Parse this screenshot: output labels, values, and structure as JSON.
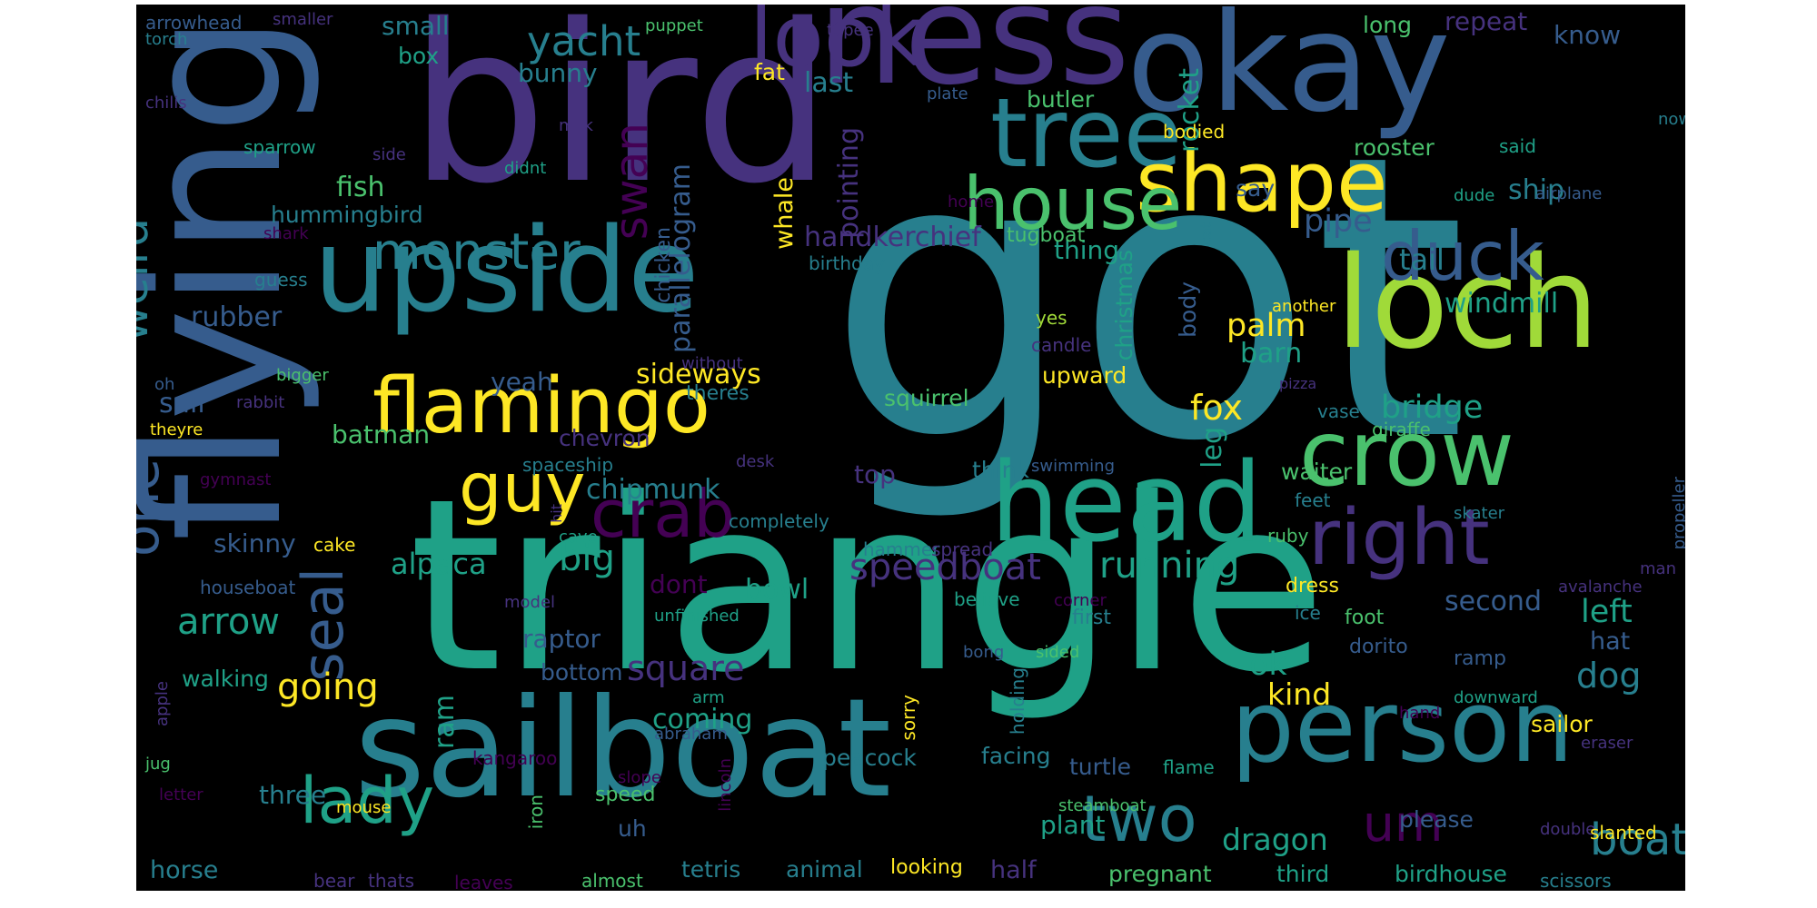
{
  "palette": {
    "c1": "#440154",
    "c2": "#46327e",
    "c3": "#365c8d",
    "c4": "#277f8e",
    "c5": "#1fa187",
    "c6": "#4ac16d",
    "c7": "#a0da39",
    "c8": "#fde725"
  },
  "words": [
    {
      "text": "got",
      "color": "c4"
    },
    {
      "text": "triangle",
      "color": "c5"
    },
    {
      "text": "bird",
      "color": "c2"
    },
    {
      "text": "flying",
      "color": "c3"
    },
    {
      "text": "sailboat",
      "color": "c4"
    },
    {
      "text": "ness",
      "color": "c2"
    },
    {
      "text": "okay",
      "color": "c3"
    },
    {
      "text": "loch",
      "color": "c7"
    },
    {
      "text": "upside",
      "color": "c4"
    },
    {
      "text": "head",
      "color": "c5"
    },
    {
      "text": "person",
      "color": "c4"
    },
    {
      "text": "crow",
      "color": "c6"
    },
    {
      "text": "tree",
      "color": "c4"
    },
    {
      "text": "look",
      "color": "c2"
    },
    {
      "text": "shape",
      "color": "c8"
    },
    {
      "text": "flamingo",
      "color": "c8"
    },
    {
      "text": "house",
      "color": "c6"
    },
    {
      "text": "right",
      "color": "c2"
    },
    {
      "text": "duck",
      "color": "c3"
    },
    {
      "text": "crab",
      "color": "c1"
    },
    {
      "text": "guy",
      "color": "c8"
    },
    {
      "text": "monster",
      "color": "c4"
    },
    {
      "text": "seal",
      "color": "c3"
    },
    {
      "text": "lady",
      "color": "c5"
    },
    {
      "text": "two",
      "color": "c4"
    },
    {
      "text": "weird",
      "color": "c4"
    },
    {
      "text": "one",
      "color": "c3"
    },
    {
      "text": "swan",
      "color": "c1"
    },
    {
      "text": "um",
      "color": "c1"
    },
    {
      "text": "yacht",
      "color": "c4"
    },
    {
      "text": "boat",
      "color": "c4"
    },
    {
      "text": "speedboat",
      "color": "c2"
    },
    {
      "text": "running",
      "color": "c5"
    },
    {
      "text": "going",
      "color": "c8"
    },
    {
      "text": "arrow",
      "color": "c5"
    },
    {
      "text": "alpaca",
      "color": "c5"
    },
    {
      "text": "big",
      "color": "c5"
    },
    {
      "text": "handkerchief",
      "color": "c2"
    },
    {
      "text": "pointing",
      "color": "c2"
    },
    {
      "text": "parallelogram",
      "color": "c3"
    },
    {
      "text": "palm",
      "color": "c8"
    },
    {
      "text": "fox",
      "color": "c8"
    },
    {
      "text": "bridge",
      "color": "c5"
    },
    {
      "text": "pipe",
      "color": "c3"
    },
    {
      "text": "tail",
      "color": "c4"
    },
    {
      "text": "windmill",
      "color": "c5"
    },
    {
      "text": "barn",
      "color": "c5"
    },
    {
      "text": "rocket",
      "color": "c5"
    },
    {
      "text": "whale",
      "color": "c8"
    },
    {
      "text": "chipmunk",
      "color": "c4"
    },
    {
      "text": "square",
      "color": "c2"
    },
    {
      "text": "left",
      "color": "c5"
    },
    {
      "text": "dog",
      "color": "c4"
    },
    {
      "text": "kind",
      "color": "c8"
    },
    {
      "text": "ok",
      "color": "c5"
    },
    {
      "text": "dragon",
      "color": "c5"
    },
    {
      "text": "christmas",
      "color": "c5"
    },
    {
      "text": "leg",
      "color": "c5"
    },
    {
      "text": "body",
      "color": "c3"
    },
    {
      "text": "ship",
      "color": "c4"
    },
    {
      "text": "rubber",
      "color": "c3"
    },
    {
      "text": "fish",
      "color": "c6"
    },
    {
      "text": "hummingbird",
      "color": "c4"
    },
    {
      "text": "bunny",
      "color": "c4"
    },
    {
      "text": "last",
      "color": "c4"
    },
    {
      "text": "small",
      "color": "c4"
    },
    {
      "text": "box",
      "color": "c5"
    },
    {
      "text": "fat",
      "color": "c8"
    },
    {
      "text": "sail",
      "color": "c3"
    },
    {
      "text": "batman",
      "color": "c6"
    },
    {
      "text": "yeah",
      "color": "c3"
    },
    {
      "text": "sideways",
      "color": "c8"
    },
    {
      "text": "chevron",
      "color": "c2"
    },
    {
      "text": "skinny",
      "color": "c3"
    },
    {
      "text": "ram",
      "color": "c5"
    },
    {
      "text": "three",
      "color": "c4"
    },
    {
      "text": "coming",
      "color": "c5"
    },
    {
      "text": "bowl",
      "color": "c5"
    },
    {
      "text": "second",
      "color": "c3"
    },
    {
      "text": "hat",
      "color": "c3"
    },
    {
      "text": "top",
      "color": "c2"
    },
    {
      "text": "think",
      "color": "c4"
    },
    {
      "text": "squirrel",
      "color": "c6"
    },
    {
      "text": "upward",
      "color": "c8"
    },
    {
      "text": "waiter",
      "color": "c6"
    },
    {
      "text": "thing",
      "color": "c5"
    },
    {
      "text": "tugboat",
      "color": "c6"
    },
    {
      "text": "butler",
      "color": "c6"
    },
    {
      "text": "rooster",
      "color": "c6"
    },
    {
      "text": "say",
      "color": "c3"
    },
    {
      "text": "repeat",
      "color": "c2"
    },
    {
      "text": "long",
      "color": "c6"
    },
    {
      "text": "know",
      "color": "c3"
    },
    {
      "text": "plant",
      "color": "c5"
    },
    {
      "text": "half",
      "color": "c2"
    },
    {
      "text": "pregnant",
      "color": "c6"
    },
    {
      "text": "third",
      "color": "c5"
    },
    {
      "text": "birdhouse",
      "color": "c5"
    },
    {
      "text": "please",
      "color": "c3"
    },
    {
      "text": "sailor",
      "color": "c8"
    },
    {
      "text": "turtle",
      "color": "c3"
    },
    {
      "text": "facing",
      "color": "c4"
    },
    {
      "text": "peacock",
      "color": "c4"
    },
    {
      "text": "horse",
      "color": "c4"
    },
    {
      "text": "tetris",
      "color": "c4"
    },
    {
      "text": "animal",
      "color": "c4"
    },
    {
      "text": "looking",
      "color": "c8"
    },
    {
      "text": "chicken",
      "color": "c3"
    },
    {
      "text": "dont",
      "color": "c1"
    },
    {
      "text": "raptor",
      "color": "c3"
    },
    {
      "text": "bottom",
      "color": "c3"
    },
    {
      "text": "walking",
      "color": "c5"
    },
    {
      "text": "uh",
      "color": "c3"
    },
    {
      "text": "speed",
      "color": "c6"
    },
    {
      "text": "scissors",
      "color": "c4"
    },
    {
      "text": "ramp",
      "color": "c3"
    },
    {
      "text": "foot",
      "color": "c6"
    },
    {
      "text": "dress",
      "color": "c8"
    },
    {
      "text": "dorito",
      "color": "c3"
    },
    {
      "text": "ice",
      "color": "c4"
    },
    {
      "text": "first",
      "color": "c4"
    },
    {
      "text": "believe",
      "color": "c5"
    },
    {
      "text": "hammer",
      "color": "c4"
    },
    {
      "text": "spread",
      "color": "c2"
    },
    {
      "text": "feet",
      "color": "c4"
    },
    {
      "text": "ruby",
      "color": "c6"
    },
    {
      "text": "skater",
      "color": "c4"
    },
    {
      "text": "vase",
      "color": "c4"
    },
    {
      "text": "giraffe",
      "color": "c6"
    },
    {
      "text": "arrowhead",
      "color": "c3"
    },
    {
      "text": "smaller",
      "color": "c2"
    },
    {
      "text": "puppet",
      "color": "c6"
    },
    {
      "text": "tepee",
      "color": "c2"
    },
    {
      "text": "torch",
      "color": "c4"
    },
    {
      "text": "chilis",
      "color": "c2"
    },
    {
      "text": "plate",
      "color": "c3"
    },
    {
      "text": "bodied",
      "color": "c8"
    },
    {
      "text": "milk",
      "color": "c2"
    },
    {
      "text": "sparrow",
      "color": "c5"
    },
    {
      "text": "side",
      "color": "c2"
    },
    {
      "text": "didnt",
      "color": "c5"
    },
    {
      "text": "home",
      "color": "c1"
    },
    {
      "text": "said",
      "color": "c5"
    },
    {
      "text": "now",
      "color": "c4"
    },
    {
      "text": "cat",
      "color": "c4"
    },
    {
      "text": "dude",
      "color": "c5"
    },
    {
      "text": "airplane",
      "color": "c3"
    },
    {
      "text": "shark",
      "color": "c1"
    },
    {
      "text": "birthday",
      "color": "c4"
    },
    {
      "text": "guess",
      "color": "c4"
    },
    {
      "text": "yes",
      "color": "c7"
    },
    {
      "text": "candle",
      "color": "c2"
    },
    {
      "text": "another",
      "color": "c8"
    },
    {
      "text": "without",
      "color": "c2"
    },
    {
      "text": "bigger",
      "color": "c6"
    },
    {
      "text": "oh",
      "color": "c3"
    },
    {
      "text": "theres",
      "color": "c4"
    },
    {
      "text": "rabbit",
      "color": "c2"
    },
    {
      "text": "pizza",
      "color": "c2"
    },
    {
      "text": "theyre",
      "color": "c8"
    },
    {
      "text": "spaceship",
      "color": "c4"
    },
    {
      "text": "desk",
      "color": "c2"
    },
    {
      "text": "swimming",
      "color": "c3"
    },
    {
      "text": "propeller",
      "color": "c3"
    },
    {
      "text": "gymnast",
      "color": "c1"
    },
    {
      "text": "hit",
      "color": "c2"
    },
    {
      "text": "completely",
      "color": "c4"
    },
    {
      "text": "cave",
      "color": "c5"
    },
    {
      "text": "cake",
      "color": "c8"
    },
    {
      "text": "houseboat",
      "color": "c3"
    },
    {
      "text": "model",
      "color": "c2"
    },
    {
      "text": "corner",
      "color": "c1"
    },
    {
      "text": "man",
      "color": "c2"
    },
    {
      "text": "avalanche",
      "color": "c2"
    },
    {
      "text": "unfinished",
      "color": "c5"
    },
    {
      "text": "bong",
      "color": "c3"
    },
    {
      "text": "sided",
      "color": "c6"
    },
    {
      "text": "sorry",
      "color": "c8"
    },
    {
      "text": "holding",
      "color": "c4"
    },
    {
      "text": "arm",
      "color": "c5"
    },
    {
      "text": "abraham",
      "color": "c3"
    },
    {
      "text": "apple",
      "color": "c2"
    },
    {
      "text": "hand",
      "color": "c1"
    },
    {
      "text": "downward",
      "color": "c5"
    },
    {
      "text": "eraser",
      "color": "c2"
    },
    {
      "text": "jug",
      "color": "c6"
    },
    {
      "text": "kangaroo",
      "color": "c1"
    },
    {
      "text": "lincoln",
      "color": "c1"
    },
    {
      "text": "flame",
      "color": "c5"
    },
    {
      "text": "letter",
      "color": "c1"
    },
    {
      "text": "slope",
      "color": "c1"
    },
    {
      "text": "mouse",
      "color": "c8"
    },
    {
      "text": "steamboat",
      "color": "c6"
    },
    {
      "text": "double",
      "color": "c2"
    },
    {
      "text": "slanted",
      "color": "c8"
    },
    {
      "text": "iron",
      "color": "c6"
    },
    {
      "text": "bear",
      "color": "c2"
    },
    {
      "text": "thats",
      "color": "c2"
    },
    {
      "text": "leaves",
      "color": "c1"
    },
    {
      "text": "almost",
      "color": "c6"
    }
  ]
}
